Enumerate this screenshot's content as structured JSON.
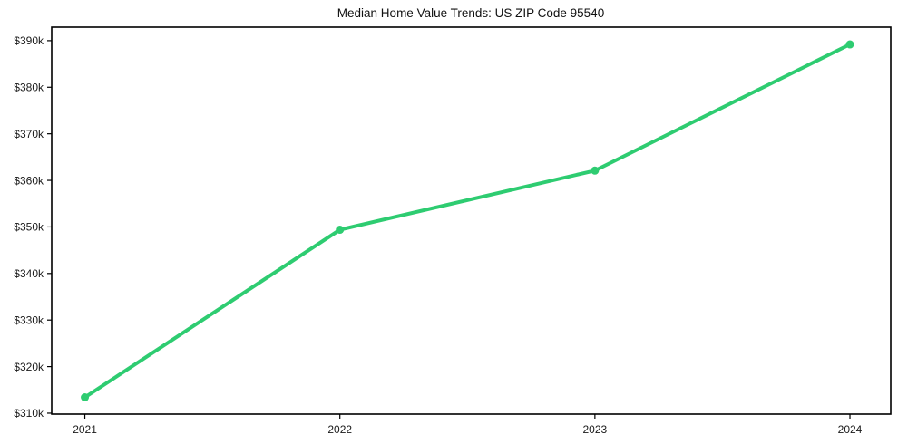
{
  "figure": {
    "background": "#ffffff"
  },
  "chart_data": {
    "type": "line",
    "title": "Median Home Value Trends: US ZIP Code 95540",
    "xlabel": "",
    "ylabel": "",
    "x": [
      2021,
      2022,
      2023,
      2024
    ],
    "x_tick_labels": [
      "2021",
      "2022",
      "2023",
      "2024"
    ],
    "series": [
      {
        "name": "median-home-value",
        "color": "#2ecc71",
        "marker": "circle",
        "line_width": 4,
        "marker_radius": 4.5,
        "values": [
          313400,
          349400,
          362100,
          389200
        ]
      }
    ],
    "y_ticks": [
      {
        "value": 310000,
        "label": "$310k"
      },
      {
        "value": 320000,
        "label": "$320k"
      },
      {
        "value": 330000,
        "label": "$330k"
      },
      {
        "value": 340000,
        "label": "$340k"
      },
      {
        "value": 350000,
        "label": "$350k"
      },
      {
        "value": 360000,
        "label": "$360k"
      },
      {
        "value": 370000,
        "label": "$370k"
      },
      {
        "value": 380000,
        "label": "$380k"
      },
      {
        "value": 390000,
        "label": "$390k"
      }
    ],
    "xlim": [
      2020.87,
      2024.16
    ],
    "ylim": [
      309800,
      392900
    ],
    "grid": false,
    "legend": "none",
    "axes": {
      "spine_color": "#000000",
      "tick_color": "#000000",
      "tick_label_color": "#1a1a1a",
      "title_color": "#111111"
    }
  }
}
